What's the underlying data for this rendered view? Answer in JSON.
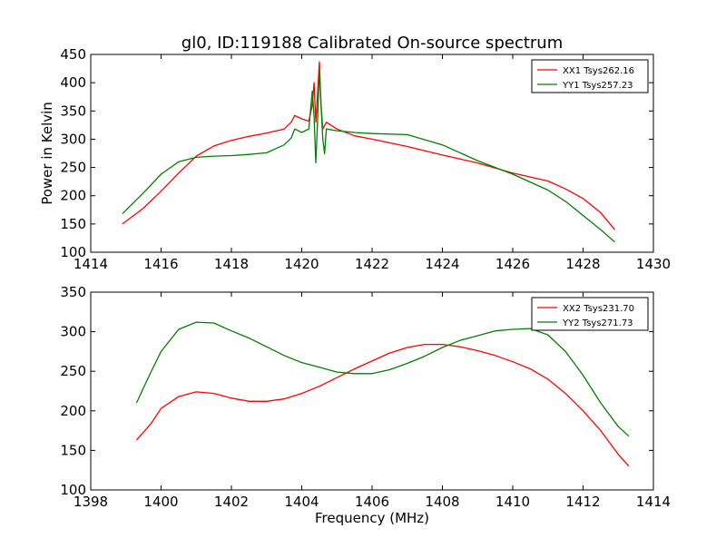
{
  "chart_data": [
    {
      "type": "line",
      "title": "gl0, ID:119188 Calibrated On-source spectrum",
      "xlabel": "",
      "ylabel": "Power in Kelvin",
      "xlim": [
        1414,
        1430
      ],
      "ylim": [
        100,
        450
      ],
      "xticks": [
        1414,
        1416,
        1418,
        1420,
        1422,
        1424,
        1426,
        1428,
        1430
      ],
      "yticks": [
        100,
        150,
        200,
        250,
        300,
        350,
        400,
        450
      ],
      "legend": "top-right",
      "grid": false,
      "series": [
        {
          "name": "XX1 Tsys262.16",
          "color": "#ff0000",
          "points": [
            [
              1414.9,
              150
            ],
            [
              1415.5,
              178
            ],
            [
              1416.0,
              208
            ],
            [
              1416.5,
              240
            ],
            [
              1417.0,
              270
            ],
            [
              1417.5,
              288
            ],
            [
              1418.0,
              298
            ],
            [
              1418.5,
              305
            ],
            [
              1419.0,
              311
            ],
            [
              1419.5,
              318
            ],
            [
              1419.7,
              330
            ],
            [
              1419.8,
              342
            ],
            [
              1420.0,
              336
            ],
            [
              1420.2,
              332
            ],
            [
              1420.3,
              360
            ],
            [
              1420.35,
              400
            ],
            [
              1420.4,
              330
            ],
            [
              1420.45,
              380
            ],
            [
              1420.5,
              437
            ],
            [
              1420.55,
              360
            ],
            [
              1420.6,
              318
            ],
            [
              1420.7,
              330
            ],
            [
              1421.0,
              318
            ],
            [
              1421.5,
              306
            ],
            [
              1422.0,
              300
            ],
            [
              1423.0,
              287
            ],
            [
              1424.0,
              272
            ],
            [
              1425.0,
              258
            ],
            [
              1426.0,
              240
            ],
            [
              1427.0,
              226
            ],
            [
              1427.5,
              212
            ],
            [
              1428.0,
              195
            ],
            [
              1428.5,
              170
            ],
            [
              1428.9,
              140
            ]
          ]
        },
        {
          "name": "YY1 Tsys257.23",
          "color": "#008000",
          "points": [
            [
              1414.9,
              168
            ],
            [
              1415.5,
              205
            ],
            [
              1416.0,
              238
            ],
            [
              1416.5,
              260
            ],
            [
              1417.0,
              268
            ],
            [
              1417.5,
              270
            ],
            [
              1418.0,
              271
            ],
            [
              1418.5,
              273
            ],
            [
              1419.0,
              276
            ],
            [
              1419.5,
              290
            ],
            [
              1419.7,
              302
            ],
            [
              1419.8,
              318
            ],
            [
              1420.0,
              312
            ],
            [
              1420.2,
              318
            ],
            [
              1420.3,
              385
            ],
            [
              1420.35,
              340
            ],
            [
              1420.4,
              258
            ],
            [
              1420.45,
              330
            ],
            [
              1420.5,
              425
            ],
            [
              1420.55,
              360
            ],
            [
              1420.6,
              300
            ],
            [
              1420.65,
              274
            ],
            [
              1420.7,
              318
            ],
            [
              1421.0,
              315
            ],
            [
              1421.5,
              312
            ],
            [
              1422.0,
              310
            ],
            [
              1423.0,
              308
            ],
            [
              1424.0,
              290
            ],
            [
              1425.0,
              262
            ],
            [
              1426.0,
              238
            ],
            [
              1427.0,
              210
            ],
            [
              1427.5,
              190
            ],
            [
              1428.0,
              165
            ],
            [
              1428.5,
              140
            ],
            [
              1428.9,
              118
            ]
          ]
        }
      ]
    },
    {
      "type": "line",
      "title": "",
      "xlabel": "Frequency (MHz)",
      "ylabel": "",
      "xlim": [
        1398,
        1414
      ],
      "ylim": [
        100,
        350
      ],
      "xticks": [
        1398,
        1400,
        1402,
        1404,
        1406,
        1408,
        1410,
        1412,
        1414
      ],
      "yticks": [
        100,
        150,
        200,
        250,
        300,
        350
      ],
      "legend": "top-right",
      "grid": false,
      "series": [
        {
          "name": "XX2 Tsys231.70",
          "color": "#ff0000",
          "points": [
            [
              1399.3,
              163
            ],
            [
              1399.7,
              183
            ],
            [
              1400.0,
              203
            ],
            [
              1400.5,
              218
            ],
            [
              1401.0,
              224
            ],
            [
              1401.5,
              222
            ],
            [
              1402.0,
              216
            ],
            [
              1402.5,
              212
            ],
            [
              1403.0,
              212
            ],
            [
              1403.5,
              215
            ],
            [
              1404.0,
              222
            ],
            [
              1404.5,
              231
            ],
            [
              1405.0,
              242
            ],
            [
              1405.5,
              253
            ],
            [
              1406.0,
              263
            ],
            [
              1406.5,
              273
            ],
            [
              1407.0,
              280
            ],
            [
              1407.5,
              284
            ],
            [
              1408.0,
              284
            ],
            [
              1408.5,
              281
            ],
            [
              1409.0,
              276
            ],
            [
              1409.5,
              270
            ],
            [
              1410.0,
              262
            ],
            [
              1410.5,
              253
            ],
            [
              1411.0,
              240
            ],
            [
              1411.5,
              222
            ],
            [
              1412.0,
              200
            ],
            [
              1412.5,
              175
            ],
            [
              1413.0,
              145
            ],
            [
              1413.3,
              130
            ]
          ]
        },
        {
          "name": "YY2 Tsys271.73",
          "color": "#008000",
          "points": [
            [
              1399.3,
              210
            ],
            [
              1399.7,
              248
            ],
            [
              1400.0,
              275
            ],
            [
              1400.5,
              303
            ],
            [
              1401.0,
              312
            ],
            [
              1401.5,
              311
            ],
            [
              1402.0,
              301
            ],
            [
              1402.5,
              292
            ],
            [
              1403.0,
              281
            ],
            [
              1403.5,
              270
            ],
            [
              1404.0,
              261
            ],
            [
              1404.5,
              255
            ],
            [
              1405.0,
              249
            ],
            [
              1405.5,
              247
            ],
            [
              1406.0,
              247
            ],
            [
              1406.5,
              252
            ],
            [
              1407.0,
              260
            ],
            [
              1407.5,
              269
            ],
            [
              1408.0,
              280
            ],
            [
              1408.5,
              289
            ],
            [
              1409.0,
              295
            ],
            [
              1409.5,
              301
            ],
            [
              1410.0,
              303
            ],
            [
              1410.5,
              304
            ],
            [
              1411.0,
              296
            ],
            [
              1411.5,
              275
            ],
            [
              1412.0,
              245
            ],
            [
              1412.5,
              210
            ],
            [
              1413.0,
              180
            ],
            [
              1413.3,
              168
            ]
          ]
        }
      ]
    }
  ]
}
